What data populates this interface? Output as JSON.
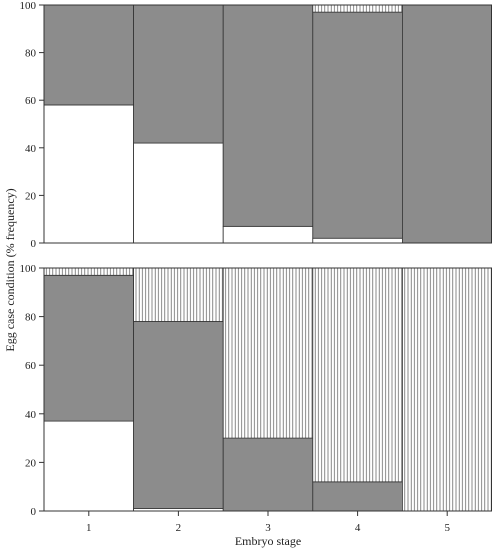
{
  "chart_data": {
    "type": "bar",
    "stacked": true,
    "bar_width": "full (marimekko-style adjacent columns)",
    "xlabel": "Embryo stage",
    "ylabel": "Egg case condition (% frequency)",
    "categories": [
      "1",
      "2",
      "3",
      "4",
      "5"
    ],
    "ylim": [
      0,
      100
    ],
    "yticks": [
      0,
      20,
      40,
      60,
      80,
      100
    ],
    "grid": false,
    "legend": "none",
    "segment_styles": {
      "white": "#ffffff",
      "grey": "#8c8c8c",
      "hatched": "vertical lines"
    },
    "panels": [
      {
        "position": "top",
        "series": [
          {
            "style": "white",
            "values": [
              58,
              42,
              7,
              2,
              0
            ]
          },
          {
            "style": "grey",
            "values": [
              42,
              58,
              93,
              95,
              100
            ]
          },
          {
            "style": "hatched",
            "values": [
              0,
              0,
              0,
              3,
              0
            ]
          }
        ]
      },
      {
        "position": "bottom",
        "series": [
          {
            "style": "white",
            "values": [
              37,
              1,
              0,
              0,
              0
            ]
          },
          {
            "style": "grey",
            "values": [
              60,
              77,
              30,
              12,
              0
            ]
          },
          {
            "style": "hatched",
            "values": [
              3,
              22,
              70,
              88,
              100
            ]
          }
        ]
      }
    ]
  }
}
